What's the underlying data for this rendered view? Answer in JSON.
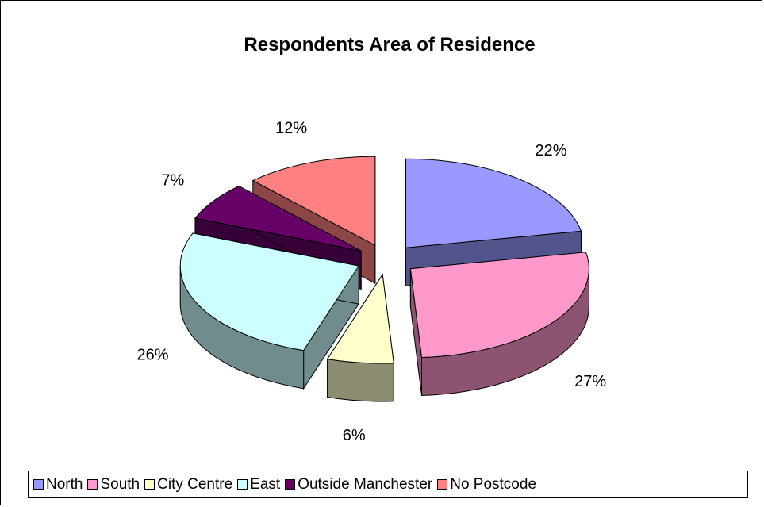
{
  "chart_data": {
    "type": "pie",
    "title": "Respondents Area of Residence",
    "style": "3d-exploded",
    "categories": [
      "North",
      "South",
      "City Centre",
      "East",
      "Outside Manchester",
      "No Postcode"
    ],
    "values": [
      22,
      27,
      6,
      26,
      7,
      12
    ],
    "labels": [
      "22%",
      "27%",
      "6%",
      "26%",
      "7%",
      "12%"
    ],
    "colors": [
      "#9999ff",
      "#ff99cc",
      "#ffffcc",
      "#ccffff",
      "#660066",
      "#ff8080"
    ],
    "legend_position": "bottom"
  },
  "legend": {
    "items": [
      {
        "label": "North",
        "color": "#9999ff"
      },
      {
        "label": "South",
        "color": "#ff99cc"
      },
      {
        "label": "City Centre",
        "color": "#ffffcc"
      },
      {
        "label": "East",
        "color": "#ccffff"
      },
      {
        "label": "Outside Manchester",
        "color": "#660066"
      },
      {
        "label": "No Postcode",
        "color": "#ff8080"
      }
    ]
  }
}
